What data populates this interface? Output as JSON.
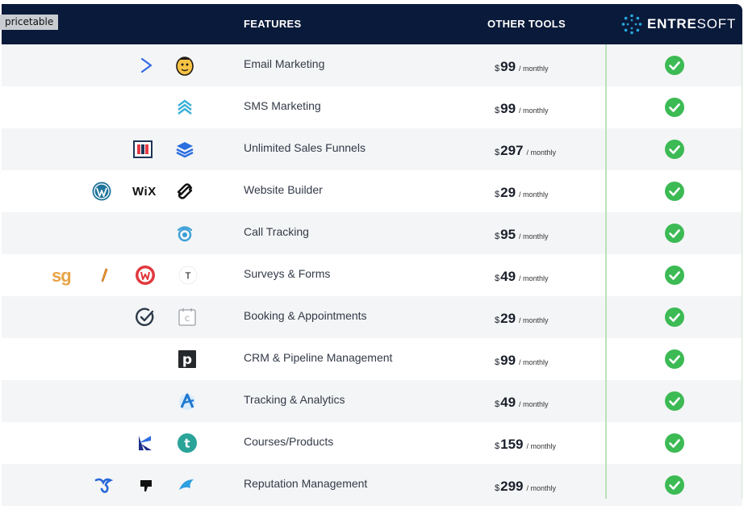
{
  "tag": "pricetable",
  "header": {
    "features": "FEATURES",
    "other_tools": "OTHER TOOLS",
    "brand_bold": "ENTRE",
    "brand_light": "SOFT"
  },
  "colors": {
    "header_bg": "#0a1a3a",
    "check_green": "#3cba54",
    "divider_green": "#b9e3b9"
  },
  "rows": [
    {
      "feature": "Email Marketing",
      "currency": "$",
      "amount": "99",
      "period": "/ monthly",
      "icons": [
        "activecampaign-chevron-icon",
        "mailchimp-icon"
      ]
    },
    {
      "feature": "SMS Marketing",
      "currency": "$",
      "amount": "99",
      "period": "/ monthly",
      "icons": [
        "sms-chevrons-icon"
      ]
    },
    {
      "feature": "Unlimited Sales Funnels",
      "currency": "$",
      "amount": "297",
      "period": "/ monthly",
      "icons": [
        "clickfunnels-icon",
        "layers-icon"
      ]
    },
    {
      "feature": "Website Builder",
      "currency": "$",
      "amount": "29",
      "period": "/ monthly",
      "icons": [
        "wordpress-icon",
        "wix-logo",
        "squarespace-icon"
      ],
      "wix": "WiX"
    },
    {
      "feature": "Call Tracking",
      "currency": "$",
      "amount": "95",
      "period": "/ monthly",
      "icons": [
        "calltracking-icon"
      ]
    },
    {
      "feature": "Surveys & Forms",
      "currency": "$",
      "amount": "49",
      "period": "/ monthly",
      "icons": [
        "surveygizmo-logo",
        "pencil-icon",
        "wufoo-icon",
        "typeform-icon"
      ],
      "sg": "sg",
      "typeform_letter": "T"
    },
    {
      "feature": "Booking & Appointments",
      "currency": "$",
      "amount": "29",
      "period": "/ monthly",
      "icons": [
        "acuity-check-icon",
        "calendar-icon"
      ],
      "calendar_letter": "C"
    },
    {
      "feature": "CRM & Pipeline Management",
      "currency": "$",
      "amount": "99",
      "period": "/ monthly",
      "icons": [
        "pipedrive-icon"
      ],
      "pipedrive_letter": "p"
    },
    {
      "feature": "Tracking & Analytics",
      "currency": "$",
      "amount": "49",
      "period": "/ monthly",
      "icons": [
        "analytics-icon"
      ]
    },
    {
      "feature": "Courses/Products",
      "currency": "$",
      "amount": "159",
      "period": "/ monthly",
      "icons": [
        "kajabi-icon",
        "teachable-icon"
      ],
      "teachable_letter": "t"
    },
    {
      "feature": "Reputation Management",
      "currency": "$",
      "amount": "299",
      "period": "/ monthly",
      "icons": [
        "birdeye-icon",
        "podium-icon",
        "reputation-wing-icon"
      ]
    }
  ]
}
